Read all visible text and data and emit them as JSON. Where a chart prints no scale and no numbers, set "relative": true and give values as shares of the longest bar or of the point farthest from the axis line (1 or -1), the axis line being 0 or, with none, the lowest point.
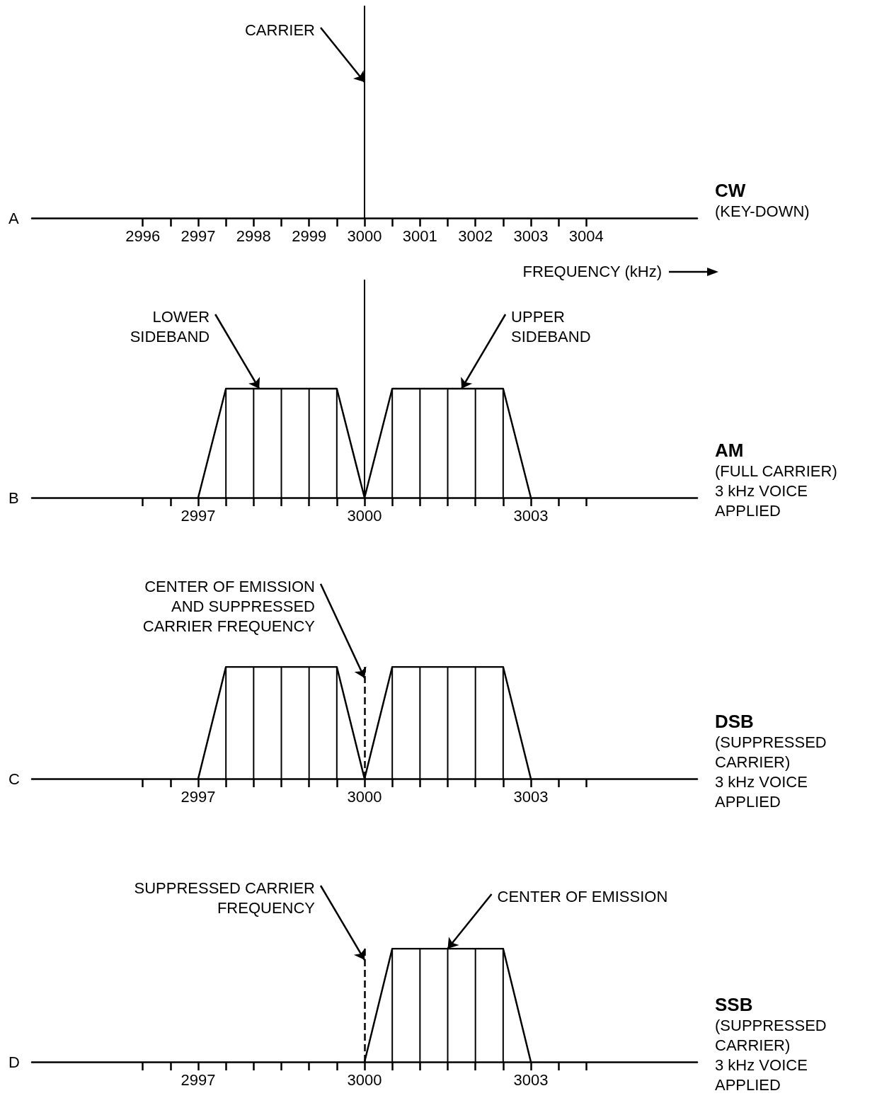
{
  "chart_data": [
    {
      "type": "bar",
      "relative": true,
      "xlim": [
        2994,
        3006
      ],
      "xlabel": "FREQUENCY (kHz)",
      "xticks": [
        2996,
        {
          "value": 2996.5,
          "label": null
        },
        2997,
        {
          "value": 2997.5,
          "label": null
        },
        2998,
        {
          "value": 2998.5,
          "label": null
        },
        2999,
        {
          "value": 2999.5,
          "label": null
        },
        3000,
        {
          "value": 3000.5,
          "label": null
        },
        3001,
        {
          "value": 3001.5,
          "label": null
        },
        3002,
        {
          "value": 3002.5,
          "label": null
        },
        3003,
        {
          "value": 3003.5,
          "label": null
        },
        3004
      ],
      "series": [
        {
          "color": "#000000",
          "x": [
            3000
          ],
          "values": [
            1
          ]
        }
      ],
      "annotations": [
        "A",
        "CW\n(KEY-DOWN)",
        {
          "text": "CARRIER",
          "x": 3000,
          "y": 0.64
        }
      ]
    },
    {
      "type": "line",
      "relative": true,
      "xlim": [
        2994,
        3006
      ],
      "xticks": [
        {
          "value": 2996,
          "label": null
        },
        {
          "value": 2996.5,
          "label": null
        },
        2997,
        {
          "value": 2997.5,
          "label": null
        },
        {
          "value": 2998,
          "label": null
        },
        {
          "value": 2998.5,
          "label": null
        },
        {
          "value": 2999,
          "label": null
        },
        {
          "value": 2999.5,
          "label": null
        },
        3000,
        {
          "value": 3000.5,
          "label": null
        },
        {
          "value": 3001,
          "label": null
        },
        {
          "value": 3001.5,
          "label": null
        },
        {
          "value": 3002,
          "label": null
        },
        {
          "value": 3002.5,
          "label": null
        },
        3003,
        {
          "value": 3003.5,
          "label": null
        },
        {
          "value": 3004,
          "label": null
        }
      ],
      "series": [
        {
          "color": "#000000",
          "x": [
            2997,
            2997.5,
            2999.5,
            3000,
            3000.5,
            3002.5,
            3003
          ],
          "values": [
            0,
            0.5,
            0.5,
            0,
            0.5,
            0.5,
            0
          ]
        },
        {
          "type": "bar",
          "color": "#000000",
          "x": [
            2997.5,
            2998,
            2998.5,
            2999,
            2999.5,
            3000,
            3000.5,
            3001,
            3001.5,
            3002,
            3002.5
          ],
          "values": [
            0.5,
            0.5,
            0.5,
            0.5,
            0.5,
            1,
            0.5,
            0.5,
            0.5,
            0.5,
            0.5
          ]
        }
      ],
      "annotations": [
        "B",
        "AM\n(FULL CARRIER)\n3 kHz VOICE\nAPPLIED",
        {
          "text": "LOWER\nSIDEBAND",
          "x": 2998.1,
          "y": 0.5
        },
        {
          "text": "UPPER\nSIDEBAND",
          "x": 3001.75,
          "y": 0.5
        }
      ]
    },
    {
      "type": "line",
      "relative": true,
      "xlim": [
        2994,
        3006
      ],
      "xticks": [
        {
          "value": 2996,
          "label": null
        },
        {
          "value": 2996.5,
          "label": null
        },
        2997,
        {
          "value": 2997.5,
          "label": null
        },
        {
          "value": 2998,
          "label": null
        },
        {
          "value": 2998.5,
          "label": null
        },
        {
          "value": 2999,
          "label": null
        },
        {
          "value": 2999.5,
          "label": null
        },
        3000,
        {
          "value": 3000.5,
          "label": null
        },
        {
          "value": 3001,
          "label": null
        },
        {
          "value": 3001.5,
          "label": null
        },
        {
          "value": 3002,
          "label": null
        },
        {
          "value": 3002.5,
          "label": null
        },
        3003,
        {
          "value": 3003.5,
          "label": null
        },
        {
          "value": 3004,
          "label": null
        }
      ],
      "series": [
        {
          "color": "#000000",
          "x": [
            2997,
            2997.5,
            2999.5,
            3000,
            3000.5,
            3002.5,
            3003
          ],
          "values": [
            0,
            1,
            1,
            0,
            1,
            1,
            0
          ]
        },
        {
          "type": "bar",
          "color": "#000000",
          "x": [
            2997.5,
            2998,
            2998.5,
            2999,
            2999.5,
            3000.5,
            3001,
            3001.5,
            3002,
            3002.5
          ],
          "values": [
            1,
            1,
            1,
            1,
            1,
            1,
            1,
            1,
            1,
            1
          ]
        }
      ],
      "ref_lines": [
        {
          "axis": "x",
          "value": 3000,
          "line_style": "dashed",
          "color": "#000000"
        }
      ],
      "annotations": [
        "C",
        "DSB\n(SUPPRESSED\nCARRIER)\n3 kHz VOICE\nAPPLIED",
        {
          "text": "CENTER OF EMISSION\nAND SUPPRESSED\nCARRIER FREQUENCY",
          "x": 3000,
          "y": 0.9
        }
      ]
    },
    {
      "type": "line",
      "relative": true,
      "xlim": [
        2994,
        3006
      ],
      "xticks": [
        {
          "value": 2996,
          "label": null
        },
        {
          "value": 2996.5,
          "label": null
        },
        2997,
        {
          "value": 2997.5,
          "label": null
        },
        {
          "value": 2998,
          "label": null
        },
        {
          "value": 2998.5,
          "label": null
        },
        {
          "value": 2999,
          "label": null
        },
        {
          "value": 2999.5,
          "label": null
        },
        3000,
        {
          "value": 3000.5,
          "label": null
        },
        {
          "value": 3001,
          "label": null
        },
        {
          "value": 3001.5,
          "label": null
        },
        {
          "value": 3002,
          "label": null
        },
        {
          "value": 3002.5,
          "label": null
        },
        3003,
        {
          "value": 3003.5,
          "label": null
        },
        {
          "value": 3004,
          "label": null
        }
      ],
      "series": [
        {
          "color": "#000000",
          "x": [
            3000,
            3000.5,
            3002.5,
            3003
          ],
          "values": [
            0,
            1,
            1,
            0
          ]
        },
        {
          "type": "bar",
          "color": "#000000",
          "x": [
            3000.5,
            3001,
            3001.5,
            3002,
            3002.5
          ],
          "values": [
            1,
            1,
            1,
            1,
            1
          ]
        }
      ],
      "ref_lines": [
        {
          "axis": "x",
          "value": 3000,
          "line_style": "dashed",
          "color": "#000000"
        }
      ],
      "annotations": [
        "D",
        "SSB\n(SUPPRESSED\nCARRIER)\n3 kHz VOICE\nAPPLIED",
        {
          "text": "SUPPRESSED CARRIER\nFREQUENCY",
          "x": 3000,
          "y": 0.9
        },
        {
          "text": "CENTER OF EMISSION",
          "x": 3001.5,
          "y": 1
        }
      ]
    }
  ]
}
